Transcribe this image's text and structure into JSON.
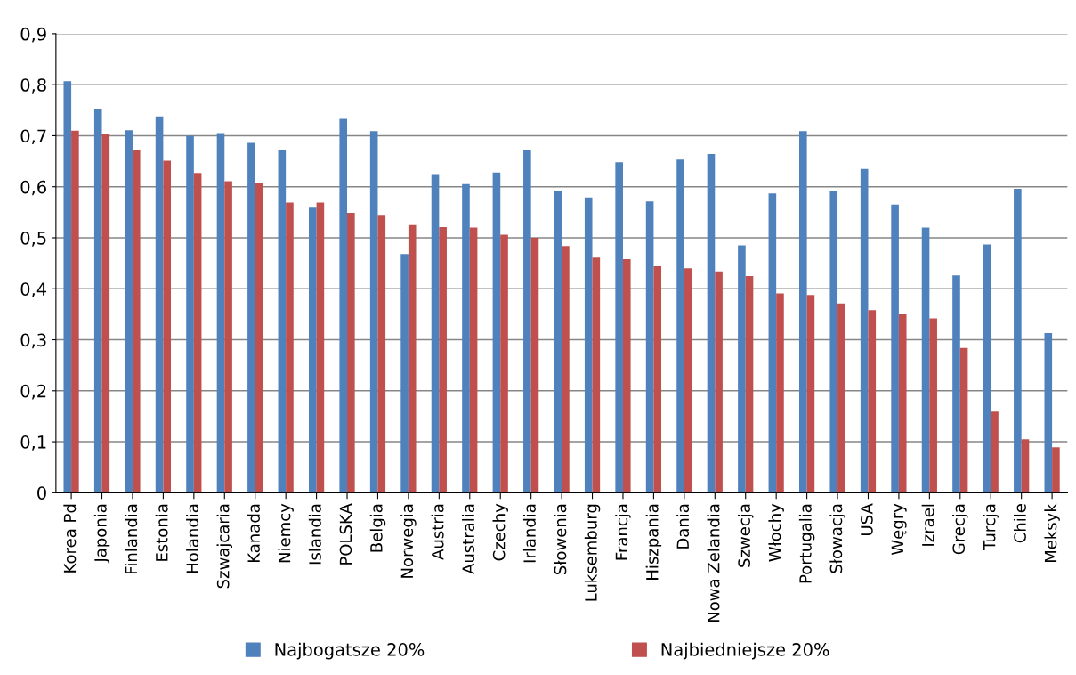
{
  "chart_data": {
    "type": "bar",
    "categories": [
      "Korea Pd",
      "Japonia",
      "Finlandia",
      "Estonia",
      "Holandia",
      "Szwajcaria",
      "Kanada",
      "Niemcy",
      "Islandia",
      "POLSKA",
      "Belgia",
      "Norwegia",
      "Austria",
      "Australia",
      "Czechy",
      "Irlandia",
      "Słowenia",
      "Luksemburg",
      "Francja",
      "Hiszpania",
      "Dania",
      "Nowa Zelandia",
      "Szwecja",
      "Włochy",
      "Portugalia",
      "Słowacja",
      "USA",
      "Węgry",
      "Izrael",
      "Grecja",
      "Turcja",
      "Chile",
      "Meksyk"
    ],
    "series": [
      {
        "name": "Najbogatsze 20%",
        "color": "#4f81bd",
        "values": [
          0.807,
          0.753,
          0.711,
          0.738,
          0.7,
          0.705,
          0.686,
          0.673,
          0.559,
          0.733,
          0.709,
          0.468,
          0.625,
          0.605,
          0.628,
          0.671,
          0.592,
          0.579,
          0.648,
          0.571,
          0.653,
          0.664,
          0.485,
          0.587,
          0.709,
          0.592,
          0.635,
          0.565,
          0.52,
          0.426,
          0.487,
          0.596,
          0.313
        ]
      },
      {
        "name": "Najbiedniejsze 20%",
        "color": "#c0504d",
        "values": [
          0.71,
          0.703,
          0.672,
          0.651,
          0.627,
          0.611,
          0.607,
          0.569,
          0.569,
          0.549,
          0.545,
          0.525,
          0.521,
          0.52,
          0.506,
          0.5,
          0.484,
          0.461,
          0.458,
          0.444,
          0.44,
          0.434,
          0.425,
          0.391,
          0.388,
          0.371,
          0.358,
          0.35,
          0.342,
          0.284,
          0.159,
          0.105,
          0.089
        ]
      }
    ],
    "ylim": [
      0,
      0.9
    ],
    "yticks": [
      0,
      {
        "value": 0.1,
        "label": "0,1"
      },
      {
        "value": 0.2,
        "label": "0,2"
      },
      {
        "value": 0.3,
        "label": "0,3"
      },
      {
        "value": 0.4,
        "label": "0,4"
      },
      {
        "value": 0.5,
        "label": "0,5"
      },
      {
        "value": 0.6,
        "label": "0,6"
      },
      {
        "value": 0.7,
        "label": "0,7"
      },
      {
        "value": 0.8,
        "label": "0,8"
      },
      {
        "value": 0.9,
        "label": "0,9"
      }
    ],
    "grid": "y",
    "legend": "bottom"
  }
}
